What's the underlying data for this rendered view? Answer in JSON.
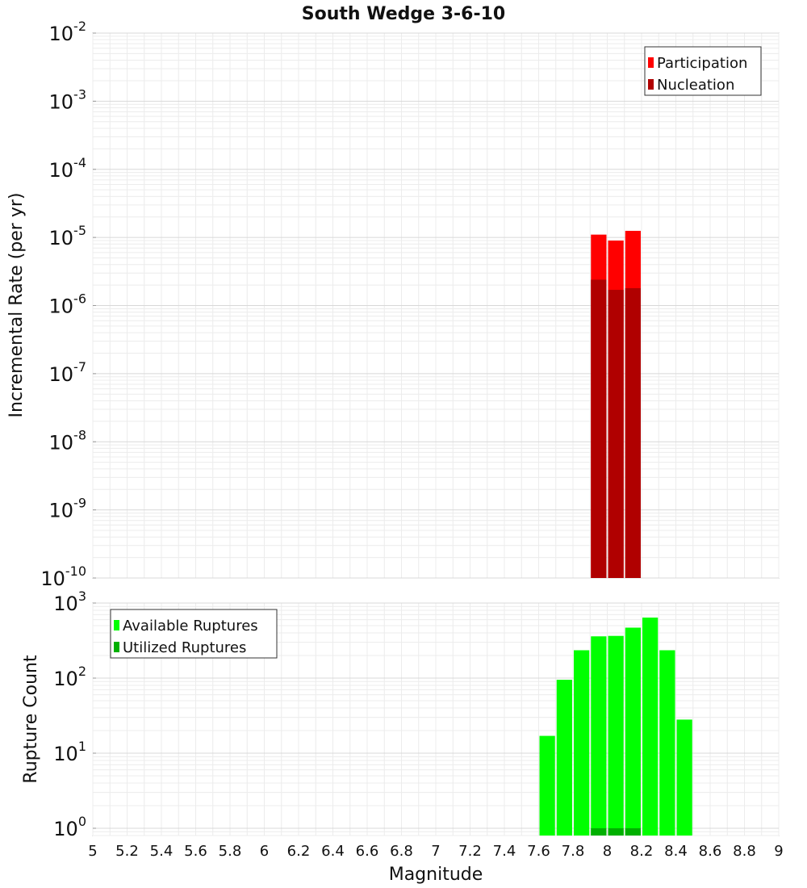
{
  "chart_data": [
    {
      "type": "bar",
      "title": "South Wedge 3-6-10",
      "ylabel": "Incremental Rate (per yr)",
      "xlabel": "Magnitude",
      "xlim": [
        5,
        9
      ],
      "ylim": [
        1e-10,
        0.01
      ],
      "yscale": "log",
      "y_ticks": [
        {
          "base": "10",
          "exp": "-10"
        },
        {
          "base": "10",
          "exp": "-9"
        },
        {
          "base": "10",
          "exp": "-8"
        },
        {
          "base": "10",
          "exp": "-7"
        },
        {
          "base": "10",
          "exp": "-6"
        },
        {
          "base": "10",
          "exp": "-5"
        },
        {
          "base": "10",
          "exp": "-4"
        },
        {
          "base": "10",
          "exp": "-3"
        },
        {
          "base": "10",
          "exp": "-2"
        }
      ],
      "grid": true,
      "legend_position": "top-right",
      "bar_width": 0.1,
      "series": [
        {
          "name": "Participation",
          "color": "#ff0000",
          "x": [
            7.95,
            8.05,
            8.15
          ],
          "values": [
            1.1e-05,
            9e-06,
            1.25e-05
          ]
        },
        {
          "name": "Nucleation",
          "color": "#b00000",
          "x": [
            7.95,
            8.05,
            8.15
          ],
          "values": [
            2.4e-06,
            1.7e-06,
            1.8e-06
          ]
        }
      ]
    },
    {
      "type": "bar",
      "ylabel": "Rupture Count",
      "xlabel": "Magnitude",
      "xlim": [
        5,
        9
      ],
      "ylim": [
        0.8,
        1000
      ],
      "yscale": "log",
      "y_ticks": [
        {
          "base": "10",
          "exp": "0"
        },
        {
          "base": "10",
          "exp": "1"
        },
        {
          "base": "10",
          "exp": "2"
        },
        {
          "base": "10",
          "exp": "3"
        }
      ],
      "grid": true,
      "legend_position": "top-left",
      "bar_width": 0.1,
      "series": [
        {
          "name": "Available Ruptures",
          "color": "#00ff00",
          "x": [
            7.65,
            7.75,
            7.85,
            7.95,
            8.05,
            8.15,
            8.25,
            8.35,
            8.45
          ],
          "values": [
            17,
            95,
            235,
            360,
            365,
            470,
            640,
            235,
            28
          ]
        },
        {
          "name": "Utilized Ruptures",
          "color": "#00b000",
          "x": [
            7.95,
            8.05,
            8.15
          ],
          "values": [
            1,
            1,
            1
          ]
        }
      ]
    }
  ],
  "x_ticks": [
    "5",
    "5.2",
    "5.4",
    "5.6",
    "5.8",
    "6",
    "6.2",
    "6.4",
    "6.6",
    "6.8",
    "7",
    "7.2",
    "7.4",
    "7.6",
    "7.8",
    "8",
    "8.2",
    "8.4",
    "8.6",
    "8.8",
    "9"
  ]
}
